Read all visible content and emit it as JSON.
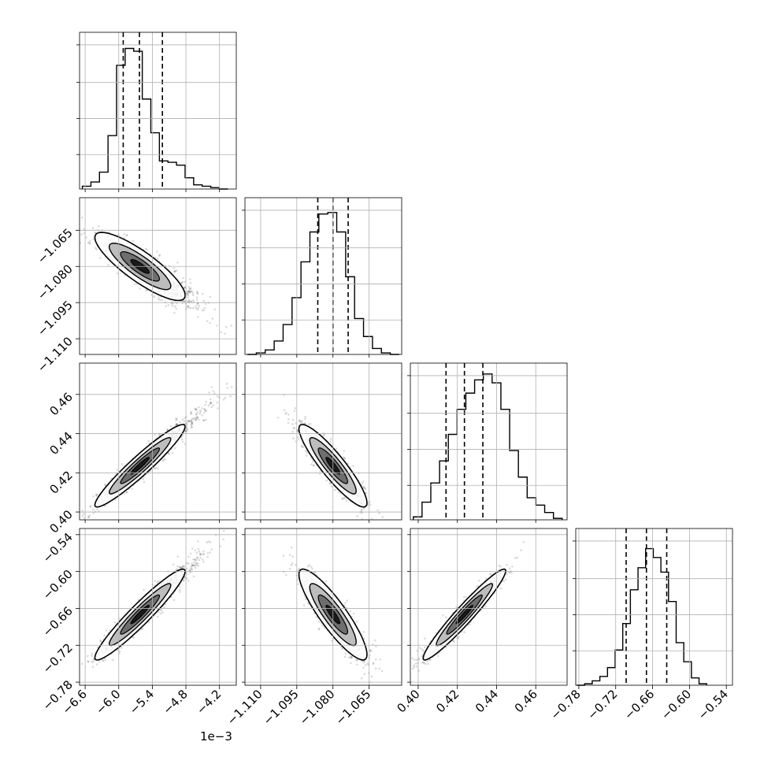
{
  "chart_data": {
    "type": "corner",
    "parameters": 4,
    "offset_text": "1e−3",
    "axes": [
      {
        "range": [
          -6.7,
          -3.9
        ],
        "ticks": [
          -6.6,
          -6.0,
          -5.4,
          -4.8,
          -4.2
        ],
        "tick_labels": [
          "−6.6",
          "−6.0",
          "−5.4",
          "−4.8",
          "−4.2"
        ]
      },
      {
        "range": [
          -1.1165,
          -1.0515
        ],
        "ticks": [
          -1.11,
          -1.095,
          -1.08,
          -1.065
        ],
        "tick_labels": [
          "−1.110",
          "−1.095",
          "−1.080",
          "−1.065"
        ]
      },
      {
        "range": [
          0.396,
          0.476
        ],
        "ticks": [
          0.4,
          0.42,
          0.44,
          0.46
        ],
        "tick_labels": [
          "0.40",
          "0.42",
          "0.44",
          "0.46"
        ]
      },
      {
        "range": [
          -0.785,
          -0.53
        ],
        "ticks": [
          -0.78,
          -0.72,
          -0.66,
          -0.6,
          -0.54
        ],
        "tick_labels": [
          "−0.78",
          "−0.72",
          "−0.66",
          "−0.60",
          "−0.54"
        ]
      }
    ],
    "histograms": [
      {
        "counts": [
          2,
          5,
          12,
          38,
          88,
          100,
          98,
          64,
          40,
          20,
          19,
          17,
          8,
          3,
          2,
          1,
          0
        ],
        "quantiles": [
          -5.92,
          -5.63,
          -5.22
        ]
      },
      {
        "counts": [
          0,
          1,
          3,
          9,
          20,
          38,
          62,
          82,
          94,
          95,
          82,
          52,
          24,
          12,
          4,
          1,
          0
        ],
        "quantiles": [
          -1.0863,
          -1.08,
          -1.0737
        ]
      },
      {
        "counts": [
          2,
          12,
          25,
          40,
          58,
          75,
          86,
          95,
          99,
          93,
          75,
          47,
          29,
          15,
          10,
          5,
          1
        ],
        "quantiles": [
          0.4142,
          0.4236,
          0.433
        ]
      },
      {
        "counts": [
          0,
          1,
          3,
          6,
          12,
          24,
          42,
          65,
          80,
          93,
          87,
          77,
          57,
          29,
          16,
          5,
          1
        ],
        "quantiles": [
          -0.703,
          -0.67,
          -0.637
        ]
      }
    ],
    "scatter_pairs": [
      {
        "x": 0,
        "y": 1,
        "mean": [
          -5.62,
          -1.08
        ],
        "sd": [
          0.36,
          0.0063
        ],
        "corr": -0.85
      },
      {
        "x": 0,
        "y": 2,
        "mean": [
          -5.62,
          0.4236
        ],
        "sd": [
          0.36,
          0.0094
        ],
        "corr": 0.95
      },
      {
        "x": 1,
        "y": 2,
        "mean": [
          -1.08,
          0.4236
        ],
        "sd": [
          0.0063,
          0.0094
        ],
        "corr": -0.9
      },
      {
        "x": 0,
        "y": 3,
        "mean": [
          -5.62,
          -0.67
        ],
        "sd": [
          0.36,
          0.033
        ],
        "corr": 0.95
      },
      {
        "x": 1,
        "y": 3,
        "mean": [
          -1.08,
          -0.67
        ],
        "sd": [
          0.0063,
          0.033
        ],
        "corr": -0.88
      },
      {
        "x": 2,
        "y": 3,
        "mean": [
          0.4236,
          -0.67
        ],
        "sd": [
          0.0094,
          0.033
        ],
        "corr": 0.96
      }
    ],
    "grid": true,
    "quantile_line_style": "dashed",
    "colors": {
      "line": "#000000",
      "points": "#000000",
      "grid": "#b0b0b0"
    }
  }
}
